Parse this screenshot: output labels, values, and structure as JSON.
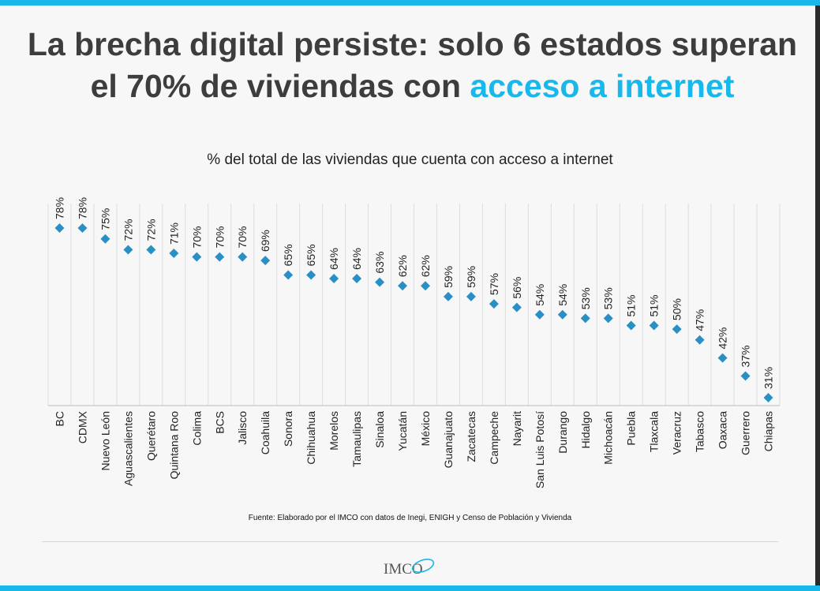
{
  "title": {
    "main": "La brecha digital persiste: solo 6 estados superan el 70% de viviendas con",
    "accent": "acceso a internet"
  },
  "subtitle": "% del total de las viviendas que cuenta con acceso a internet",
  "source": "Fuente: Elaborado por el IMCO con datos de Inegi, ENIGH y Censo de Población y Vivienda",
  "logo": {
    "text": "IMCO"
  },
  "colors": {
    "accent": "#1ab8ea",
    "marker": "#2a8fc4",
    "title": "#3d3d3d",
    "grid": "#dddddd"
  },
  "chart_data": {
    "type": "scatter",
    "categories": [
      "BC",
      "CDMX",
      "Nuevo León",
      "Aguascalientes",
      "Querétaro",
      "Quintana Roo",
      "Colima",
      "BCS",
      "Jalisco",
      "Coahuila",
      "Sonora",
      "Chihuahua",
      "Morelos",
      "Tamaulipas",
      "Sinaloa",
      "Yucatán",
      "México",
      "Guanajuato",
      "Zacatecas",
      "Campeche",
      "Nayarit",
      "San Luis Potosí",
      "Durango",
      "Hidalgo",
      "Michoacán",
      "Puebla",
      "Tlaxcala",
      "Veracruz",
      "Tabasco",
      "Oaxaca",
      "Guerrero",
      "Chiapas"
    ],
    "values": [
      78,
      78,
      75,
      72,
      72,
      71,
      70,
      70,
      70,
      69,
      65,
      65,
      64,
      64,
      63,
      62,
      62,
      59,
      59,
      57,
      56,
      54,
      54,
      53,
      53,
      51,
      51,
      50,
      47,
      42,
      37,
      31
    ],
    "value_suffix": "%",
    "ylim": [
      31,
      78
    ],
    "marker": "diamond",
    "grid": true,
    "legend": "none"
  }
}
